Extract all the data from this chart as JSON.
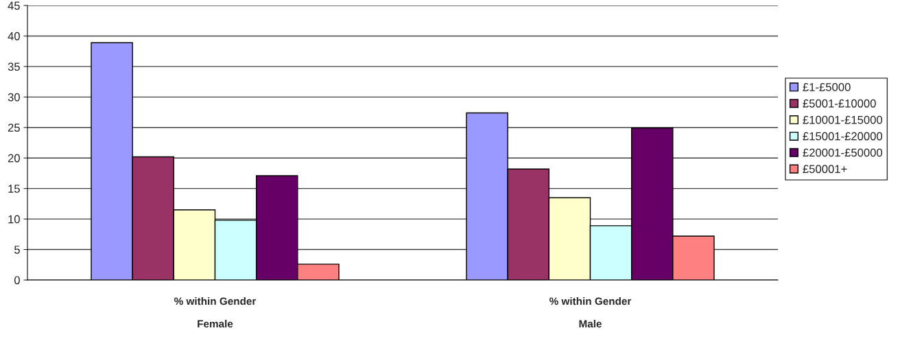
{
  "chart_data": {
    "type": "bar",
    "categories": [
      "% within Gender\n\nFemale",
      "% within Gender\n\nMale"
    ],
    "series": [
      {
        "name": "£1-£5000",
        "color": "#9999ff",
        "values": [
          38.9,
          27.4
        ]
      },
      {
        "name": "£5001-£10000",
        "color": "#993366",
        "values": [
          20.2,
          18.2
        ]
      },
      {
        "name": "£10001-£15000",
        "color": "#ffffcc",
        "values": [
          11.5,
          13.5
        ]
      },
      {
        "name": "£15001-£20000",
        "color": "#ccffff",
        "values": [
          9.8,
          8.9
        ]
      },
      {
        "name": "£20001-£50000",
        "color": "#660066",
        "values": [
          17.1,
          24.9
        ]
      },
      {
        "name": "£50001+",
        "color": "#ff8080",
        "values": [
          2.6,
          7.2
        ]
      }
    ],
    "ylim": [
      0,
      45
    ],
    "yticks": [
      0,
      5,
      10,
      15,
      20,
      25,
      30,
      35,
      40,
      45
    ],
    "grid": "y",
    "legend": "right"
  }
}
